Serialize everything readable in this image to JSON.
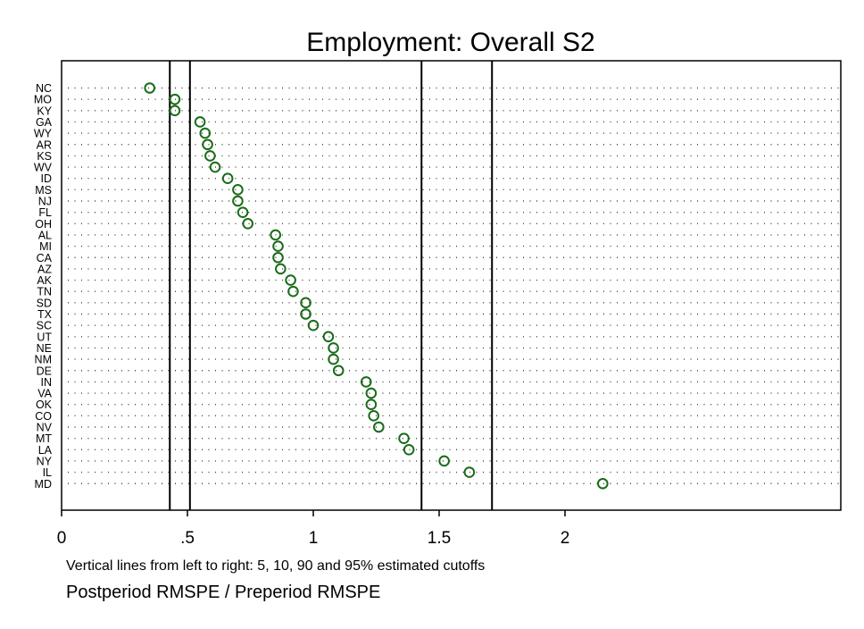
{
  "chart_data": {
    "type": "scatter",
    "title": "Employment: Overall S2",
    "xlabel": "Postperiod RMSPE / Preperiod RMSPE",
    "note": "Vertical lines from left to right: 5, 10, 90 and 95% estimated cutoffs",
    "xlim": [
      0,
      3.1
    ],
    "xticks": [
      {
        "value": 0,
        "label": "0"
      },
      {
        "value": 0.5,
        "label": ".5"
      },
      {
        "value": 1,
        "label": "1"
      },
      {
        "value": 1.5,
        "label": "1.5"
      },
      {
        "value": 2,
        "label": "2"
      }
    ],
    "cutoffs": [
      0.43,
      0.51,
      1.43,
      1.71
    ],
    "marker_color": "#1a6b1a",
    "grid": "dotted horizontal",
    "categories": [
      "NC",
      "MO",
      "KY",
      "GA",
      "WY",
      "AR",
      "KS",
      "WV",
      "ID",
      "MS",
      "NJ",
      "FL",
      "OH",
      "AL",
      "MI",
      "CA",
      "AZ",
      "AK",
      "TN",
      "SD",
      "TX",
      "SC",
      "UT",
      "NE",
      "NM",
      "DE",
      "IN",
      "VA",
      "OK",
      "CO",
      "NV",
      "MT",
      "LA",
      "NY",
      "IL",
      "MD"
    ],
    "values": [
      0.35,
      0.45,
      0.45,
      0.55,
      0.57,
      0.58,
      0.59,
      0.61,
      0.66,
      0.7,
      0.7,
      0.72,
      0.74,
      0.85,
      0.86,
      0.86,
      0.87,
      0.91,
      0.92,
      0.97,
      0.97,
      1.0,
      1.06,
      1.08,
      1.08,
      1.1,
      1.21,
      1.23,
      1.23,
      1.24,
      1.26,
      1.36,
      1.38,
      1.52,
      1.62,
      2.15
    ]
  }
}
